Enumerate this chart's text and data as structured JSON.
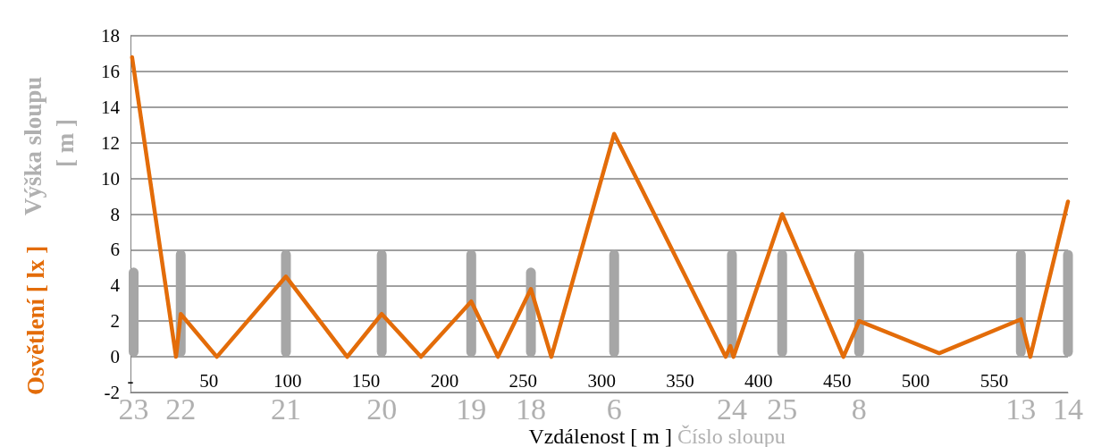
{
  "chart_data": {
    "type": "line",
    "xlabel": "Vzdálenost [ m ]",
    "ylabel": "Osvětlení [ lx ]",
    "xlim": [
      0,
      597
    ],
    "xticks": [
      {
        "value": 0,
        "label": "-"
      },
      50,
      100,
      150,
      200,
      250,
      300,
      350,
      400,
      450,
      500,
      550
    ],
    "ylim": [
      -2,
      18
    ],
    "yticks": [
      -2,
      0,
      2,
      4,
      6,
      8,
      10,
      12,
      14,
      16,
      18
    ],
    "grid": "y",
    "marker": "none",
    "line_style": "solid",
    "series": [
      {
        "type": "bar",
        "color": "#a6a6a6",
        "x": [
          2,
          32,
          99,
          160,
          217,
          255,
          308,
          383,
          415,
          464,
          567,
          597
        ],
        "values": [
          5,
          6,
          6,
          6,
          6,
          5,
          6,
          6,
          6,
          6,
          6,
          6
        ]
      },
      {
        "color": "#e36c09",
        "x": [
          1,
          29,
          32,
          55,
          99,
          138,
          160,
          185,
          217,
          234,
          255,
          268,
          308,
          379,
          382,
          384,
          415,
          454,
          464,
          515,
          567,
          573,
          597
        ],
        "values": [
          16.8,
          0,
          2.4,
          0,
          4.5,
          0,
          2.4,
          0,
          3.1,
          0,
          3.8,
          0,
          12.5,
          0,
          0.6,
          0,
          8,
          0,
          2,
          0.2,
          2.1,
          0,
          8.7
        ]
      }
    ],
    "annotations": [
      "Výška sloupu [ m ]",
      "Číslo sloupu",
      "23",
      "22",
      "21",
      "20",
      "19",
      "18",
      "6",
      "24",
      "25",
      "8",
      "13",
      "14"
    ]
  }
}
